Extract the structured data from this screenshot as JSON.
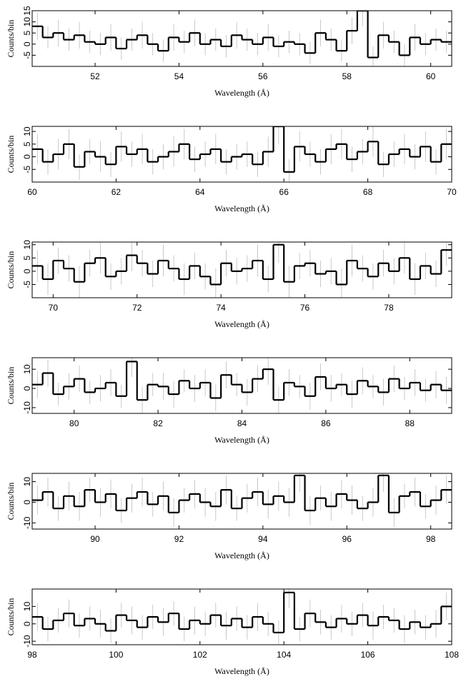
{
  "chart_data": [
    {
      "type": "histogram",
      "xlabel": "Wavelength (Å)",
      "ylabel": "Counts/bin",
      "bins": [
        50.5,
        50.75,
        51,
        51.25,
        51.5,
        51.75,
        52,
        52.25,
        52.5,
        52.75,
        53,
        53.25,
        53.5,
        53.75,
        54,
        54.25,
        54.5,
        54.75,
        55,
        55.25,
        55.5,
        55.75,
        56,
        56.25,
        56.5,
        56.75,
        57,
        57.25,
        57.5,
        57.75,
        58,
        58.25,
        58.5,
        58.75,
        59,
        59.25,
        59.5,
        59.75,
        60,
        60.25,
        60.5
      ],
      "values": [
        8,
        3,
        5,
        2,
        4,
        1,
        0,
        3,
        -2,
        2,
        4,
        0,
        -3,
        3,
        1,
        5,
        0,
        2,
        -1,
        4,
        2,
        0,
        3,
        -1,
        1,
        0,
        -4,
        5,
        2,
        -3,
        6,
        15,
        -6,
        4,
        1,
        -5,
        3,
        0,
        2,
        1
      ],
      "errors": [
        6,
        5,
        6,
        5,
        6,
        5,
        5,
        6,
        5,
        5,
        6,
        5,
        5,
        6,
        5,
        6,
        5,
        5,
        5,
        6,
        5,
        5,
        6,
        5,
        5,
        5,
        5,
        6,
        5,
        5,
        6,
        7,
        5,
        6,
        5,
        5,
        6,
        5,
        5,
        5
      ],
      "xlim": [
        50.5,
        60.5
      ],
      "ylim": [
        -10,
        15
      ],
      "xticks": [
        52,
        54,
        56,
        58,
        60
      ],
      "yticks": [
        -5,
        0,
        5,
        10,
        15
      ]
    },
    {
      "type": "histogram",
      "xlabel": "Wavelength (Å)",
      "ylabel": "Counts/bin",
      "bins": [
        60,
        60.25,
        60.5,
        60.75,
        61,
        61.25,
        61.5,
        61.75,
        62,
        62.25,
        62.5,
        62.75,
        63,
        63.25,
        63.5,
        63.75,
        64,
        64.25,
        64.5,
        64.75,
        65,
        65.25,
        65.5,
        65.75,
        66,
        66.25,
        66.5,
        66.75,
        67,
        67.25,
        67.5,
        67.75,
        68,
        68.25,
        68.5,
        68.75,
        69,
        69.25,
        69.5,
        69.75,
        70
      ],
      "values": [
        3,
        -2,
        1,
        5,
        -4,
        2,
        0,
        -3,
        4,
        1,
        3,
        -2,
        0,
        2,
        5,
        -1,
        1,
        3,
        -2,
        0,
        1,
        -3,
        2,
        12,
        -6,
        4,
        1,
        -2,
        3,
        5,
        -1,
        2,
        6,
        -3,
        1,
        3,
        0,
        4,
        -2,
        5
      ],
      "errors": [
        6,
        5,
        6,
        6,
        5,
        5,
        6,
        5,
        6,
        5,
        6,
        5,
        5,
        6,
        6,
        5,
        5,
        6,
        5,
        5,
        5,
        5,
        6,
        7,
        5,
        6,
        5,
        5,
        6,
        6,
        5,
        5,
        6,
        5,
        5,
        6,
        5,
        6,
        5,
        6
      ],
      "xlim": [
        60,
        70
      ],
      "ylim": [
        -10,
        12
      ],
      "xticks": [
        60,
        62,
        64,
        66,
        68,
        70
      ],
      "yticks": [
        -5,
        0,
        5,
        10
      ]
    },
    {
      "type": "histogram",
      "xlabel": "Wavelength (Å)",
      "ylabel": "Counts/bin",
      "bins": [
        69.5,
        69.75,
        70,
        70.25,
        70.5,
        70.75,
        71,
        71.25,
        71.5,
        71.75,
        72,
        72.25,
        72.5,
        72.75,
        73,
        73.25,
        73.5,
        73.75,
        74,
        74.25,
        74.5,
        74.75,
        75,
        75.25,
        75.5,
        75.75,
        76,
        76.25,
        76.5,
        76.75,
        77,
        77.25,
        77.5,
        77.75,
        78,
        78.25,
        78.5,
        78.75,
        79,
        79.25,
        79.5
      ],
      "values": [
        2,
        -3,
        4,
        1,
        -4,
        3,
        5,
        -2,
        0,
        6,
        3,
        -1,
        4,
        1,
        -3,
        2,
        -2,
        -5,
        3,
        0,
        1,
        4,
        -3,
        10,
        -4,
        2,
        3,
        -1,
        0,
        -5,
        4,
        1,
        -2,
        3,
        0,
        5,
        -3,
        2,
        -1,
        8
      ],
      "errors": [
        6,
        6,
        5,
        5,
        6,
        5,
        6,
        5,
        5,
        6,
        5,
        5,
        6,
        5,
        6,
        5,
        5,
        6,
        5,
        5,
        5,
        6,
        5,
        7,
        6,
        5,
        5,
        5,
        5,
        6,
        6,
        5,
        5,
        5,
        5,
        6,
        6,
        5,
        5,
        6
      ],
      "xlim": [
        69.5,
        79.5
      ],
      "ylim": [
        -10,
        11
      ],
      "xticks": [
        70,
        72,
        74,
        76,
        78
      ],
      "yticks": [
        -5,
        0,
        5,
        10
      ]
    },
    {
      "type": "histogram",
      "xlabel": "Wavelength (Å)",
      "ylabel": "Counts/bin",
      "bins": [
        79,
        79.25,
        79.5,
        79.75,
        80,
        80.25,
        80.5,
        80.75,
        81,
        81.25,
        81.5,
        81.75,
        82,
        82.25,
        82.5,
        82.75,
        83,
        83.25,
        83.5,
        83.75,
        84,
        84.25,
        84.5,
        84.75,
        85,
        85.25,
        85.5,
        85.75,
        86,
        86.25,
        86.5,
        86.75,
        87,
        87.25,
        87.5,
        87.75,
        88,
        88.25,
        88.5,
        88.75,
        89
      ],
      "values": [
        2,
        8,
        -3,
        1,
        5,
        -2,
        0,
        3,
        -4,
        14,
        -6,
        2,
        1,
        -3,
        4,
        0,
        3,
        -5,
        7,
        2,
        -2,
        5,
        10,
        -6,
        3,
        1,
        -4,
        6,
        0,
        2,
        -3,
        4,
        1,
        -2,
        5,
        0,
        3,
        -1,
        2,
        -1
      ],
      "errors": [
        7,
        7,
        6,
        7,
        7,
        6,
        7,
        7,
        6,
        8,
        7,
        6,
        7,
        7,
        6,
        7,
        7,
        7,
        7,
        6,
        7,
        7,
        8,
        7,
        7,
        6,
        7,
        7,
        7,
        6,
        7,
        7,
        6,
        7,
        7,
        6,
        7,
        6,
        7,
        7
      ],
      "xlim": [
        79,
        89
      ],
      "ylim": [
        -13,
        16
      ],
      "xticks": [
        80,
        82,
        84,
        86,
        88
      ],
      "yticks": [
        -10,
        0,
        10
      ]
    },
    {
      "type": "histogram",
      "xlabel": "Wavelength (Å)",
      "ylabel": "Counts/bin",
      "bins": [
        88.5,
        88.75,
        89,
        89.25,
        89.5,
        89.75,
        90,
        90.25,
        90.5,
        90.75,
        91,
        91.25,
        91.5,
        91.75,
        92,
        92.25,
        92.5,
        92.75,
        93,
        93.25,
        93.5,
        93.75,
        94,
        94.25,
        94.5,
        94.75,
        95,
        95.25,
        95.5,
        95.75,
        96,
        96.25,
        96.5,
        96.75,
        97,
        97.25,
        97.5,
        97.75,
        98,
        98.25,
        98.5
      ],
      "values": [
        1,
        5,
        -3,
        3,
        -2,
        6,
        0,
        4,
        -4,
        2,
        5,
        -1,
        3,
        -5,
        1,
        4,
        0,
        -2,
        6,
        -3,
        2,
        5,
        -1,
        3,
        0,
        13,
        -4,
        2,
        -2,
        4,
        1,
        -3,
        0,
        13,
        -5,
        3,
        5,
        -2,
        1,
        6
      ],
      "errors": [
        7,
        7,
        6,
        7,
        7,
        6,
        7,
        7,
        6,
        7,
        7,
        6,
        7,
        7,
        6,
        7,
        7,
        7,
        7,
        6,
        7,
        7,
        7,
        7,
        7,
        8,
        7,
        6,
        7,
        7,
        7,
        6,
        7,
        8,
        7,
        6,
        7,
        6,
        7,
        7
      ],
      "xlim": [
        88.5,
        98.5
      ],
      "ylim": [
        -13,
        14
      ],
      "xticks": [
        90,
        92,
        94,
        96,
        98
      ],
      "yticks": [
        -10,
        0,
        10
      ]
    },
    {
      "type": "histogram",
      "xlabel": "Wavelength (Å)",
      "ylabel": "Counts/bin",
      "bins": [
        98,
        98.25,
        98.5,
        98.75,
        99,
        99.25,
        99.5,
        99.75,
        100,
        100.25,
        100.5,
        100.75,
        101,
        101.25,
        101.5,
        101.75,
        102,
        102.25,
        102.5,
        102.75,
        103,
        103.25,
        103.5,
        103.75,
        104,
        104.25,
        104.5,
        104.75,
        105,
        105.25,
        105.5,
        105.75,
        106,
        106.25,
        106.5,
        106.75,
        107,
        107.25,
        107.5,
        107.75,
        108
      ],
      "values": [
        4,
        -3,
        2,
        6,
        -1,
        3,
        0,
        -4,
        5,
        2,
        -2,
        4,
        1,
        6,
        -3,
        2,
        0,
        5,
        -1,
        3,
        -2,
        4,
        0,
        -5,
        18,
        -3,
        6,
        1,
        -2,
        3,
        0,
        5,
        -1,
        4,
        2,
        -3,
        1,
        -2,
        0,
        10
      ],
      "errors": [
        8,
        7,
        7,
        8,
        7,
        7,
        8,
        7,
        7,
        8,
        7,
        7,
        8,
        7,
        7,
        8,
        7,
        7,
        8,
        7,
        7,
        8,
        7,
        7,
        9,
        7,
        8,
        7,
        7,
        8,
        7,
        7,
        8,
        7,
        7,
        8,
        7,
        7,
        8,
        8
      ],
      "xlim": [
        98,
        108
      ],
      "ylim": [
        -12,
        20
      ],
      "xticks": [
        98,
        100,
        102,
        104,
        106,
        108
      ],
      "yticks": [
        -10,
        0,
        10
      ]
    }
  ]
}
